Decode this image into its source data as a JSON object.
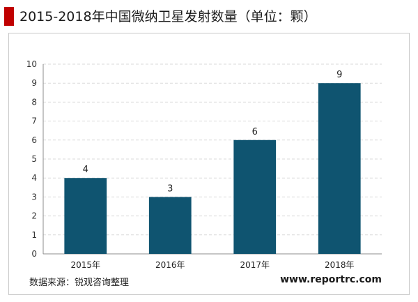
{
  "title": "2015-2018年中国微纳卫星发射数量（单位：颗）",
  "source_text": "数据来源：锐观咨询整理",
  "website": "www.reportrc.com",
  "colors": {
    "bar": "#0f5470",
    "accent": "#c00000",
    "gridline": "#d9d9d9"
  },
  "chart_data": {
    "type": "bar",
    "categories": [
      "2015年",
      "2016年",
      "2017年",
      "2018年"
    ],
    "values": [
      4,
      3,
      6,
      9
    ],
    "data_labels": [
      "4",
      "3",
      "6",
      "9"
    ],
    "y_ticks": [
      "0",
      "1",
      "2",
      "3",
      "4",
      "5",
      "6",
      "7",
      "8",
      "9",
      "10"
    ],
    "ylim": [
      0,
      10
    ],
    "grid": true,
    "legend": "none"
  }
}
